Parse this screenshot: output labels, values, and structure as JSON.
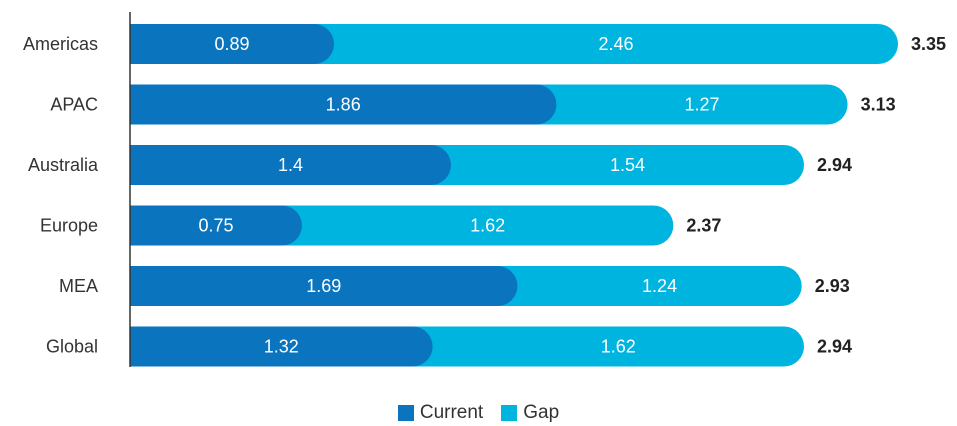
{
  "chart_data": {
    "type": "bar",
    "orientation": "horizontal",
    "stacked": true,
    "categories": [
      "Americas",
      "APAC",
      "Australia",
      "Europe",
      "MEA",
      "Global"
    ],
    "series": [
      {
        "name": "Current",
        "color": "#0a74bf",
        "values": [
          0.89,
          1.86,
          1.4,
          0.75,
          1.69,
          1.32
        ],
        "labels": [
          "0.89",
          "1.86",
          "1.4",
          "0.75",
          "1.69",
          "1.32"
        ]
      },
      {
        "name": "Gap",
        "color": "#00b4e0",
        "values": [
          2.46,
          1.27,
          1.54,
          1.62,
          1.24,
          1.62
        ],
        "labels": [
          "2.46",
          "1.27",
          "1.54",
          "1.62",
          "1.24",
          "1.62"
        ]
      }
    ],
    "totals": [
      "3.35",
      "3.13",
      "2.94",
      "2.37",
      "2.93",
      "2.94"
    ],
    "xlim": [
      0,
      3.35
    ],
    "legend_position": "bottom-center",
    "grid": false
  }
}
